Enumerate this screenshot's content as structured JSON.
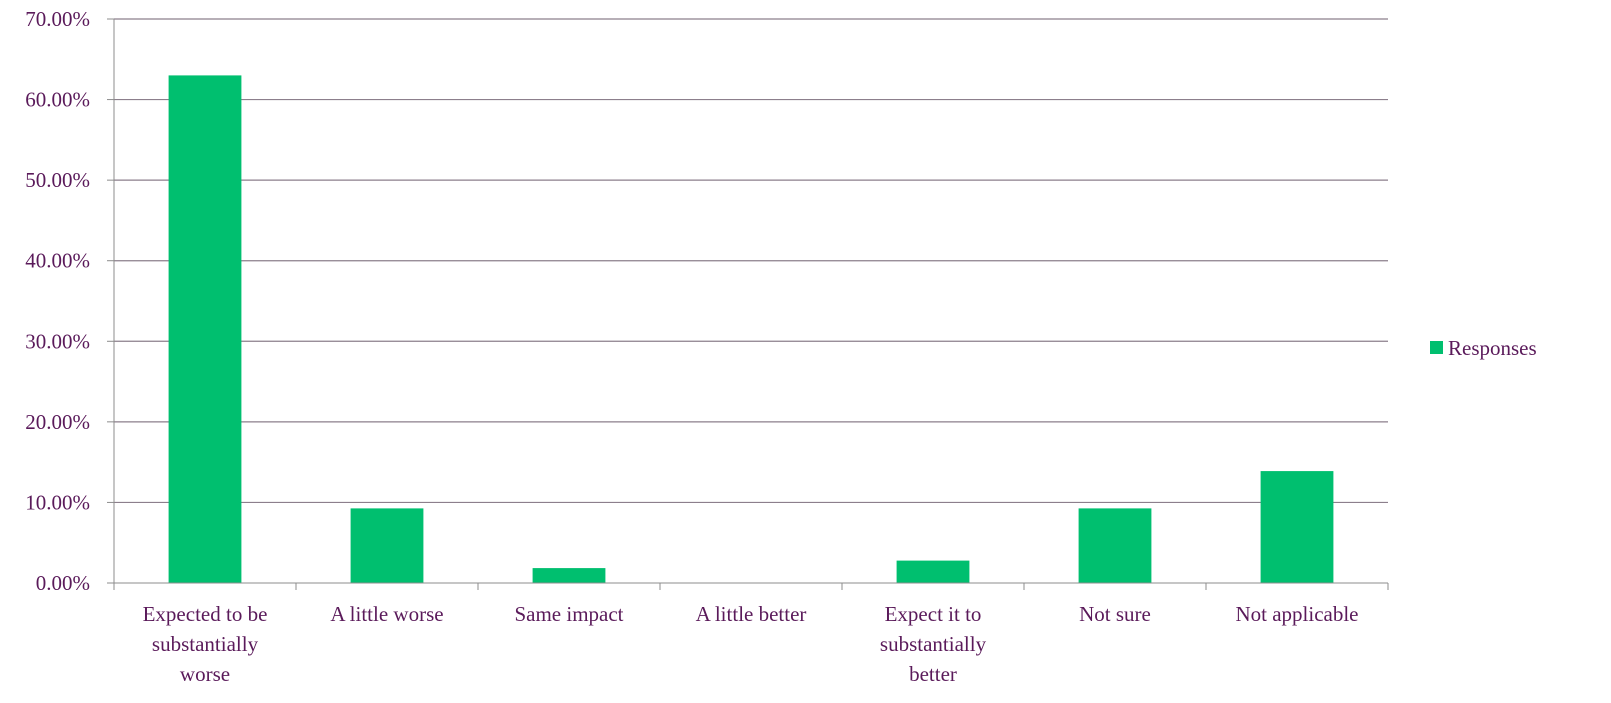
{
  "chart_data": {
    "type": "bar",
    "categories": [
      [
        "Expected to be",
        "substantially",
        "worse"
      ],
      [
        "A little worse"
      ],
      [
        "Same impact"
      ],
      [
        "A little better"
      ],
      [
        "Expect it to",
        "substantially",
        "better"
      ],
      [
        "Not sure"
      ],
      [
        "Not applicable"
      ]
    ],
    "series": [
      {
        "name": "Responses",
        "values": [
          63.0,
          9.26,
          1.85,
          0.0,
          2.78,
          9.26,
          13.89
        ]
      }
    ],
    "ylim": [
      0,
      70
    ],
    "yticks": [
      0,
      10,
      20,
      30,
      40,
      50,
      60,
      70
    ],
    "ytick_labels": [
      "0.00%",
      "10.00%",
      "20.00%",
      "30.00%",
      "40.00%",
      "50.00%",
      "60.00%",
      "70.00%"
    ],
    "grid": true,
    "legend_position": "right",
    "colors": {
      "bar": "#00bf6f",
      "grid": "#8c7f8c",
      "axis": "#8c8c8c",
      "text": "#5a1a5a"
    }
  }
}
